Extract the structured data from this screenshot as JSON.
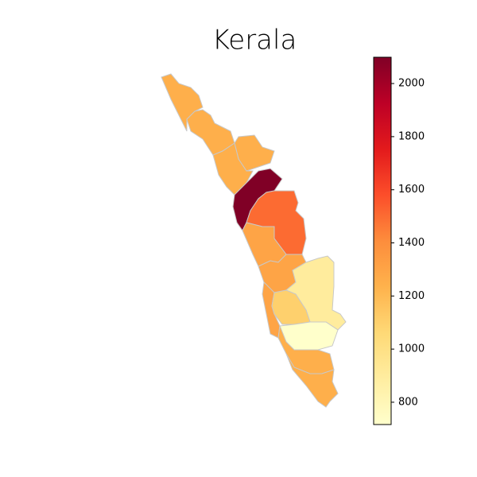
{
  "chart_data": {
    "type": "choropleth",
    "title": "Kerala",
    "values": [
      1250,
      1250,
      1250,
      1250,
      2100,
      1500,
      1300,
      1300,
      900,
      1300,
      1100,
      720,
      1250,
      1250
    ],
    "colorbar": {
      "lim": [
        716,
        2099
      ],
      "ticks": [
        800,
        1000,
        1200,
        1400,
        1600,
        1800,
        2000
      ],
      "colors": [
        "#ffffcc",
        "#ffeda0",
        "#fed976",
        "#feb24c",
        "#fd8d3c",
        "#fc4e2a",
        "#e31a1c",
        "#bd0026",
        "#800026"
      ]
    },
    "edge_color": "#c8c8c8"
  }
}
